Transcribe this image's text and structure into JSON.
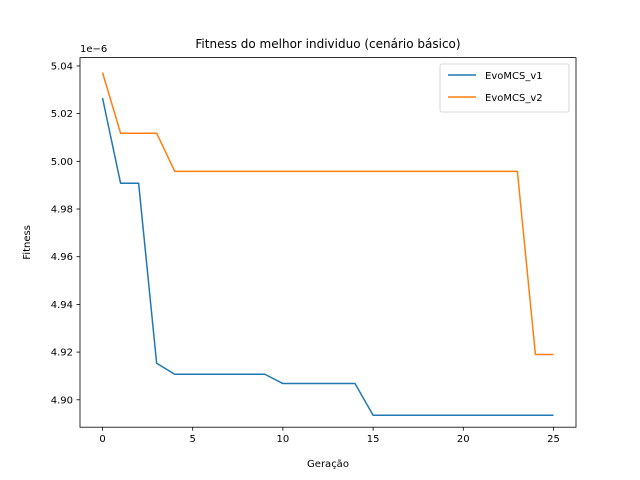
{
  "chart_data": {
    "type": "line",
    "title": "Fitness do melhor individuo (cenário básico)",
    "xlabel": "Geração",
    "ylabel": "Fitness",
    "scale_label": "1e−6",
    "xlim": [
      -1.25,
      26.25
    ],
    "ylim": [
      4.8885,
      5.0435
    ],
    "xticks": [
      0,
      5,
      10,
      15,
      20,
      25
    ],
    "yticks": [
      4.9,
      4.92,
      4.94,
      4.96,
      4.98,
      5.0,
      5.02,
      5.04
    ],
    "ytick_labels": [
      "4.90",
      "4.92",
      "4.94",
      "4.96",
      "4.98",
      "5.00",
      "5.02",
      "5.04"
    ],
    "grid": false,
    "legend_position": "top-right",
    "x": [
      0,
      1,
      2,
      3,
      4,
      5,
      6,
      7,
      8,
      9,
      10,
      11,
      12,
      13,
      14,
      15,
      16,
      17,
      18,
      19,
      20,
      21,
      22,
      23,
      24,
      25
    ],
    "series": [
      {
        "name": "EvoMCS_v1",
        "color": "#1f77b4",
        "values": [
          5.0265,
          4.9908,
          4.9908,
          4.9153,
          4.9107,
          4.9107,
          4.9107,
          4.9107,
          4.9107,
          4.9107,
          4.9068,
          4.9068,
          4.9068,
          4.9068,
          4.9068,
          4.8935,
          4.8935,
          4.8935,
          4.8935,
          4.8935,
          4.8935,
          4.8935,
          4.8935,
          4.8935,
          4.8935,
          4.8935
        ]
      },
      {
        "name": "EvoMCS_v2",
        "color": "#ff7f0e",
        "values": [
          5.0372,
          5.0118,
          5.0118,
          5.0118,
          4.9958,
          4.9958,
          4.9958,
          4.9958,
          4.9958,
          4.9958,
          4.9958,
          4.9958,
          4.9958,
          4.9958,
          4.9958,
          4.9958,
          4.9958,
          4.9958,
          4.9958,
          4.9958,
          4.9958,
          4.9958,
          4.9958,
          4.9958,
          4.919,
          4.919
        ]
      }
    ]
  }
}
